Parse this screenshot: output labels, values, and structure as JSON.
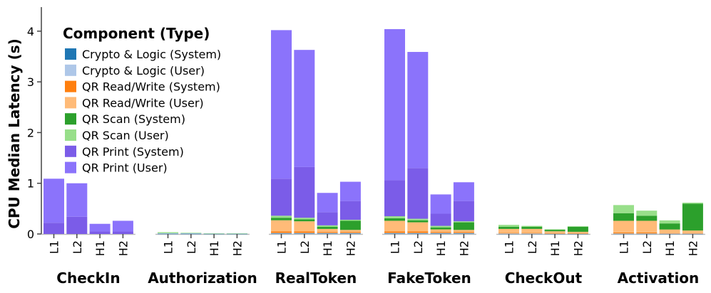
{
  "chart_data": {
    "type": "bar",
    "stacked": true,
    "ylabel": "CPU Median Latency (s)",
    "ylim": [
      0,
      4.4
    ],
    "yticks": [
      0,
      1,
      2,
      3,
      4
    ],
    "grid": false,
    "legend_title": "Component (Type)",
    "legend_position": "top-left",
    "groups": [
      "CheckIn",
      "Authorization",
      "RealToken",
      "FakeToken",
      "CheckOut",
      "Activation"
    ],
    "bars": [
      "L1",
      "L2",
      "H1",
      "H2"
    ],
    "series": [
      {
        "name": "Crypto & Logic (System)",
        "color": "#1f77b4",
        "values": [
          [
            0,
            0,
            0,
            0
          ],
          [
            0.005,
            0.005,
            0.004,
            0.004
          ],
          [
            0.01,
            0.01,
            0.01,
            0.01
          ],
          [
            0.01,
            0.01,
            0.01,
            0.01
          ],
          [
            0.005,
            0.005,
            0.004,
            0.004
          ],
          [
            0.005,
            0.005,
            0.004,
            0.004
          ]
        ]
      },
      {
        "name": "Crypto & Logic (User)",
        "color": "#aec7e8",
        "values": [
          [
            0,
            0,
            0,
            0
          ],
          [
            0.01,
            0.01,
            0.006,
            0.006
          ],
          [
            0.01,
            0.01,
            0.01,
            0.01
          ],
          [
            0.01,
            0.01,
            0.01,
            0.01
          ],
          [
            0.005,
            0.005,
            0.004,
            0.004
          ],
          [
            0.005,
            0.005,
            0.004,
            0.004
          ]
        ]
      },
      {
        "name": "QR Read/Write (System)",
        "color": "#ff7f0e",
        "values": [
          [
            0,
            0,
            0,
            0
          ],
          [
            0,
            0,
            0,
            0
          ],
          [
            0.03,
            0.03,
            0.02,
            0.02
          ],
          [
            0.03,
            0.03,
            0.02,
            0.02
          ],
          [
            0.01,
            0.01,
            0.005,
            0.005
          ],
          [
            0.02,
            0.02,
            0.01,
            0.01
          ]
        ]
      },
      {
        "name": "QR Read/Write (User)",
        "color": "#ffbb78",
        "values": [
          [
            0,
            0,
            0,
            0
          ],
          [
            0,
            0,
            0,
            0
          ],
          [
            0.22,
            0.2,
            0.06,
            0.04
          ],
          [
            0.21,
            0.18,
            0.05,
            0.04
          ],
          [
            0.08,
            0.08,
            0.04,
            0.03
          ],
          [
            0.23,
            0.23,
            0.07,
            0.05
          ]
        ]
      },
      {
        "name": "QR Scan (System)",
        "color": "#2ca02c",
        "values": [
          [
            0,
            0,
            0,
            0
          ],
          [
            0,
            0,
            0,
            0
          ],
          [
            0.05,
            0.04,
            0.04,
            0.18
          ],
          [
            0.05,
            0.04,
            0.04,
            0.15
          ],
          [
            0.04,
            0.04,
            0.03,
            0.1
          ],
          [
            0.15,
            0.1,
            0.12,
            0.53
          ]
        ]
      },
      {
        "name": "QR Scan (User)",
        "color": "#98df8a",
        "values": [
          [
            0,
            0,
            0,
            0
          ],
          [
            0.02,
            0.01,
            0.005,
            0.005
          ],
          [
            0.04,
            0.03,
            0.03,
            0.02
          ],
          [
            0.04,
            0.03,
            0.03,
            0.02
          ],
          [
            0.04,
            0.02,
            0.01,
            0.01
          ],
          [
            0.16,
            0.1,
            0.06,
            0.02
          ]
        ]
      },
      {
        "name": "QR Print (System)",
        "color": "#7b5ce8",
        "values": [
          [
            0.22,
            0.34,
            0.05,
            0.05
          ],
          [
            0,
            0,
            0,
            0
          ],
          [
            0.73,
            1.0,
            0.26,
            0.37
          ],
          [
            0.71,
            1.0,
            0.24,
            0.4
          ],
          [
            0,
            0,
            0,
            0
          ],
          [
            0,
            0,
            0,
            0
          ]
        ]
      },
      {
        "name": "QR Print (User)",
        "color": "#8b73fb",
        "values": [
          [
            0.87,
            0.66,
            0.15,
            0.21
          ],
          [
            0,
            0,
            0,
            0
          ],
          [
            2.93,
            2.31,
            0.38,
            0.38
          ],
          [
            2.98,
            2.29,
            0.38,
            0.37
          ],
          [
            0,
            0,
            0,
            0
          ],
          [
            0,
            0,
            0,
            0
          ]
        ]
      }
    ]
  }
}
